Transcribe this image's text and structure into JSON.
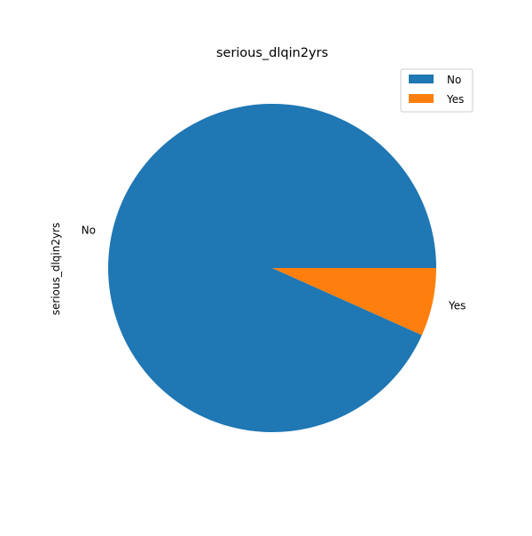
{
  "chart_data": {
    "type": "pie",
    "title": "serious_dlqin2yrs",
    "ylabel": "serious_dlqin2yrs",
    "categories": [
      "No",
      "Yes"
    ],
    "values": [
      93.3,
      6.7
    ],
    "colors": [
      "#1f77b4",
      "#ff7f0e"
    ],
    "start_angle_deg": 0,
    "direction": "counterclockwise",
    "legend": {
      "entries": [
        "No",
        "Yes"
      ],
      "placement": "top-right"
    }
  }
}
